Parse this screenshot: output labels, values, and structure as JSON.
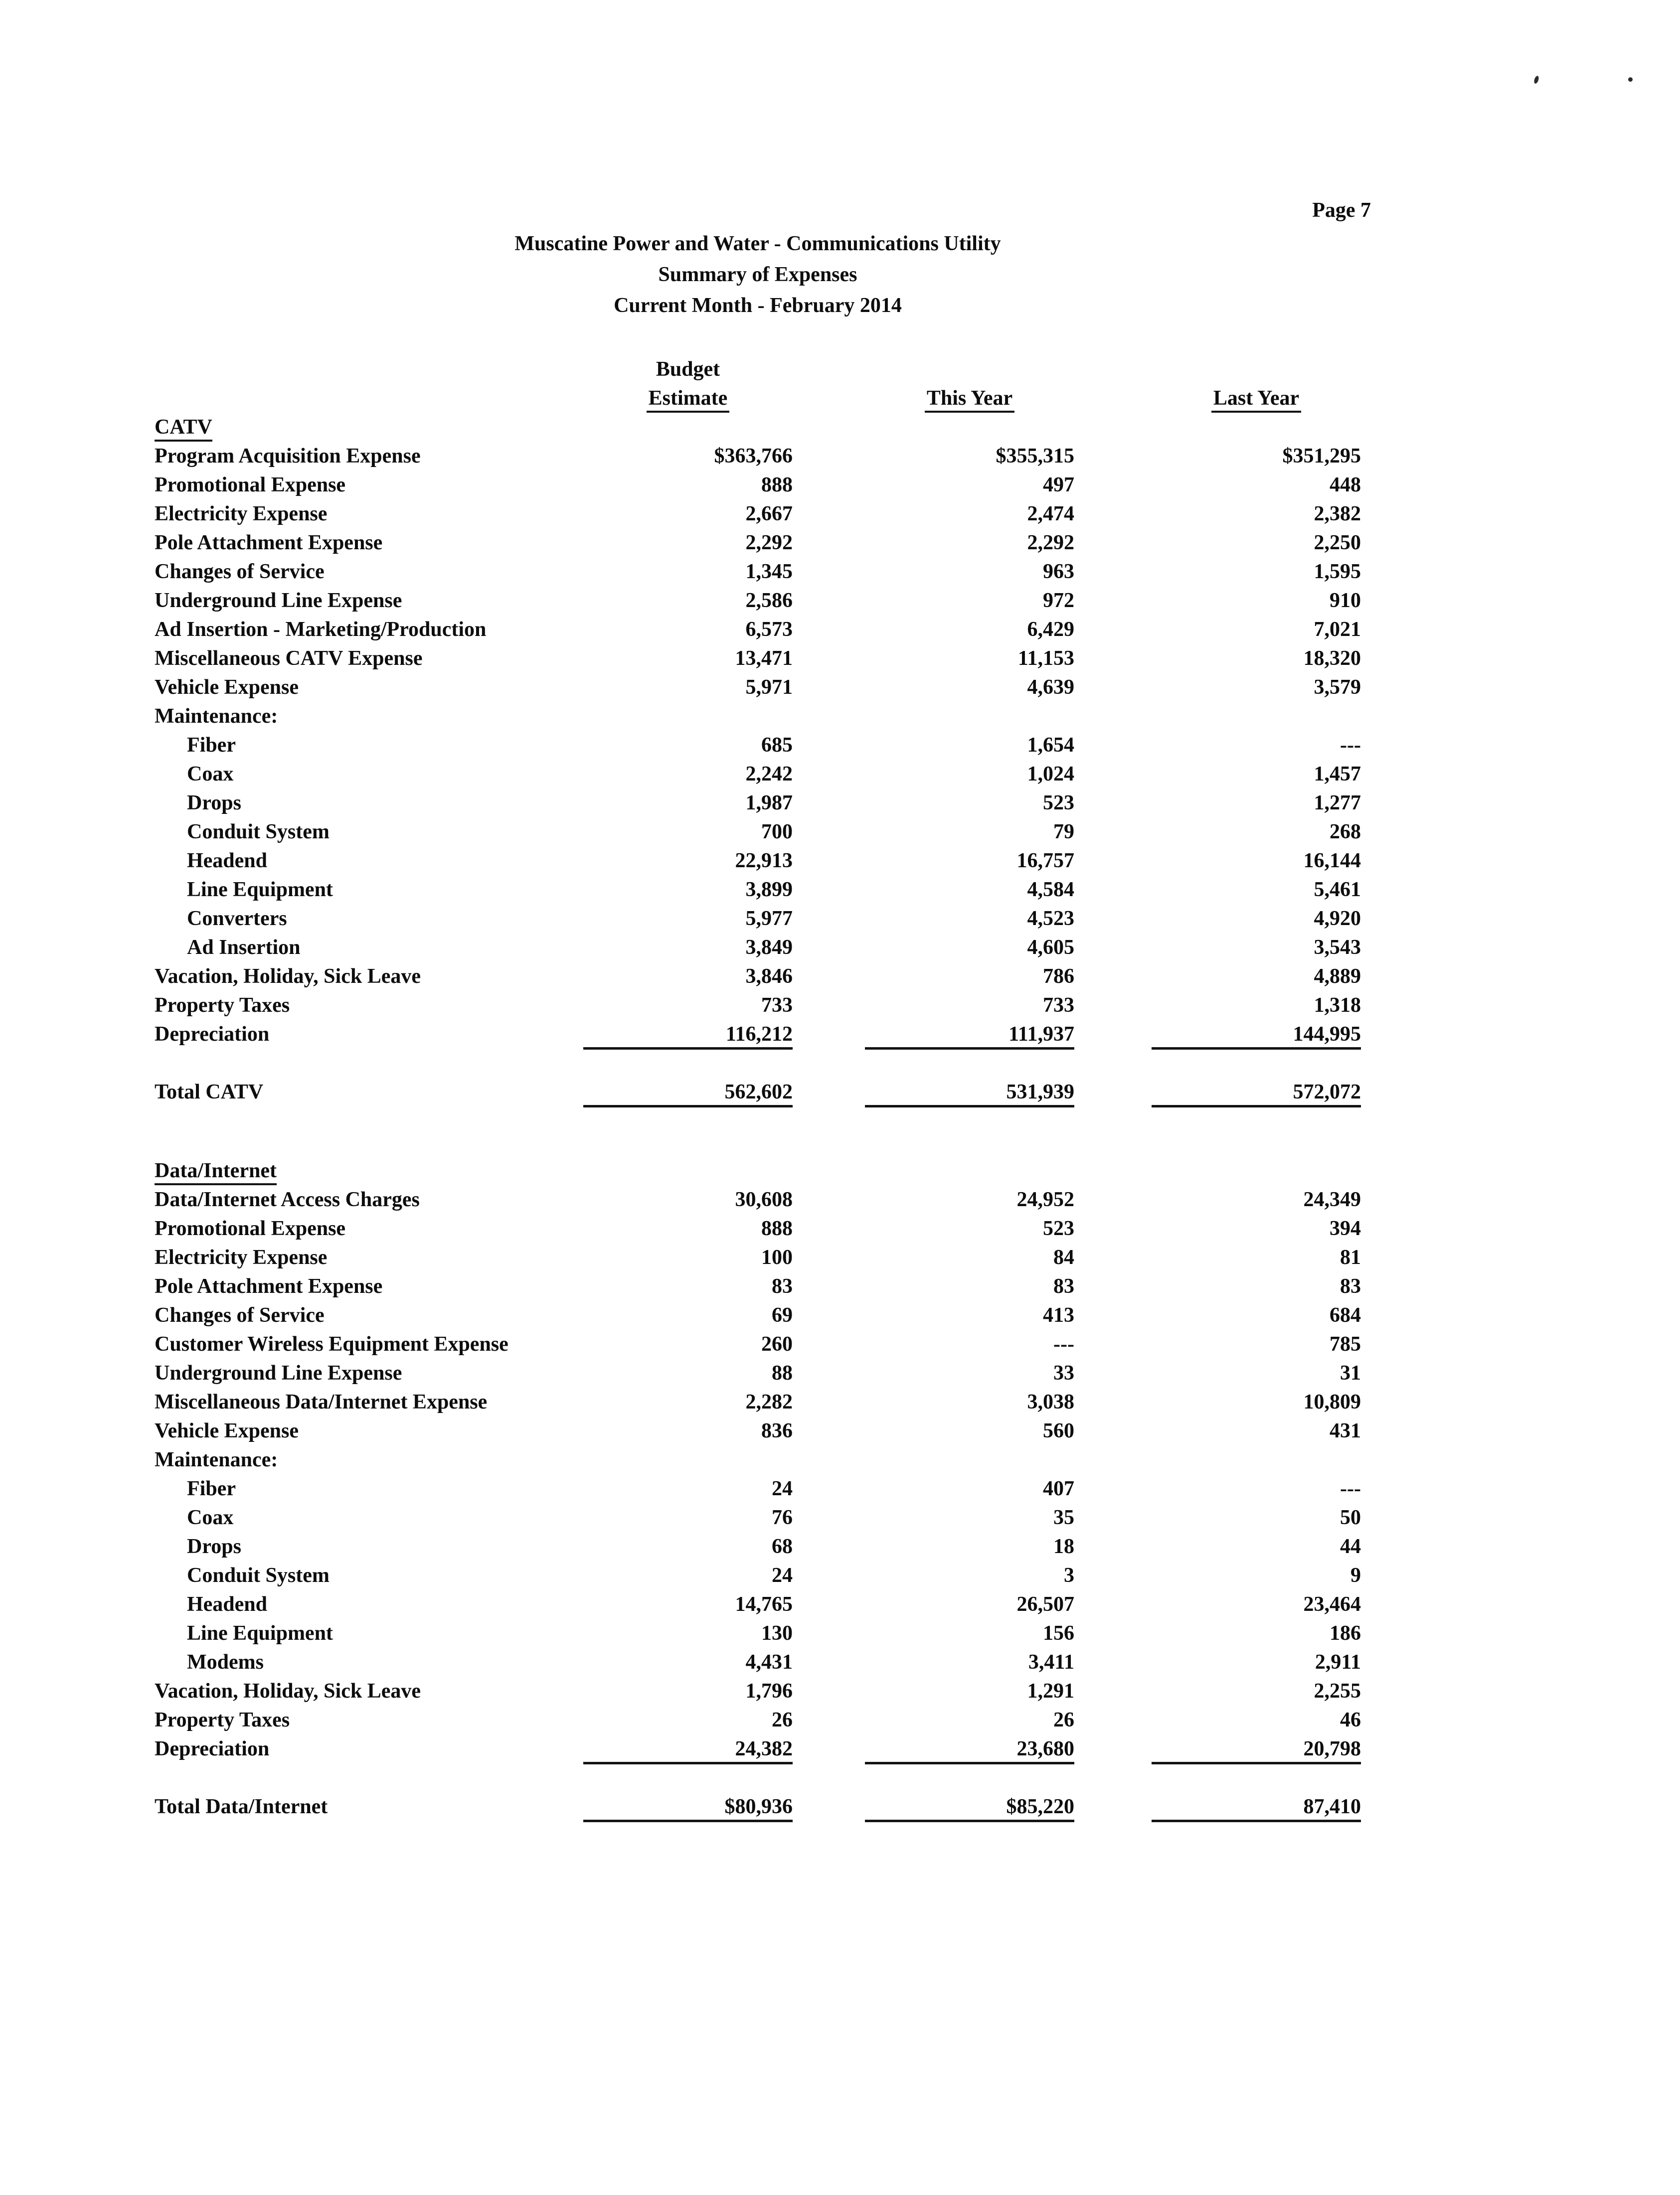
{
  "page": {
    "page_number": "Page 7"
  },
  "header": {
    "title1": "Muscatine Power and Water - Communications Utility",
    "title2": "Summary of Expenses",
    "title3": "Current Month - February 2014"
  },
  "columns": {
    "budget": "Budget",
    "estimate": "Estimate",
    "this_year": "This Year",
    "last_year": "Last Year"
  },
  "sections": [
    {
      "name": "CATV",
      "rows": [
        {
          "label": "Program Acquisition Expense",
          "indent": 0,
          "values": [
            "$363,766",
            "$355,315",
            "$351,295"
          ],
          "rule": false
        },
        {
          "label": "Promotional Expense",
          "indent": 0,
          "values": [
            "888",
            "497",
            "448"
          ],
          "rule": false
        },
        {
          "label": "Electricity Expense",
          "indent": 0,
          "values": [
            "2,667",
            "2,474",
            "2,382"
          ],
          "rule": false
        },
        {
          "label": "Pole Attachment Expense",
          "indent": 0,
          "values": [
            "2,292",
            "2,292",
            "2,250"
          ],
          "rule": false
        },
        {
          "label": "Changes of Service",
          "indent": 0,
          "values": [
            "1,345",
            "963",
            "1,595"
          ],
          "rule": false
        },
        {
          "label": "Underground Line Expense",
          "indent": 0,
          "values": [
            "2,586",
            "972",
            "910"
          ],
          "rule": false
        },
        {
          "label": "Ad Insertion - Marketing/Production",
          "indent": 0,
          "values": [
            "6,573",
            "6,429",
            "7,021"
          ],
          "rule": false
        },
        {
          "label": "Miscellaneous CATV Expense",
          "indent": 0,
          "values": [
            "13,471",
            "11,153",
            "18,320"
          ],
          "rule": false
        },
        {
          "label": "Vehicle Expense",
          "indent": 0,
          "values": [
            "5,971",
            "4,639",
            "3,579"
          ],
          "rule": false
        },
        {
          "label": "Maintenance:",
          "indent": 0,
          "values": [
            "",
            "",
            ""
          ],
          "rule": false
        },
        {
          "label": "Fiber",
          "indent": 1,
          "values": [
            "685",
            "1,654",
            "---"
          ],
          "rule": false
        },
        {
          "label": "Coax",
          "indent": 1,
          "values": [
            "2,242",
            "1,024",
            "1,457"
          ],
          "rule": false
        },
        {
          "label": "Drops",
          "indent": 1,
          "values": [
            "1,987",
            "523",
            "1,277"
          ],
          "rule": false
        },
        {
          "label": "Conduit System",
          "indent": 1,
          "values": [
            "700",
            "79",
            "268"
          ],
          "rule": false
        },
        {
          "label": "Headend",
          "indent": 1,
          "values": [
            "22,913",
            "16,757",
            "16,144"
          ],
          "rule": false
        },
        {
          "label": "Line Equipment",
          "indent": 1,
          "values": [
            "3,899",
            "4,584",
            "5,461"
          ],
          "rule": false
        },
        {
          "label": "Converters",
          "indent": 1,
          "values": [
            "5,977",
            "4,523",
            "4,920"
          ],
          "rule": false
        },
        {
          "label": "Ad Insertion",
          "indent": 1,
          "values": [
            "3,849",
            "4,605",
            "3,543"
          ],
          "rule": false
        },
        {
          "label": "Vacation, Holiday, Sick Leave",
          "indent": 0,
          "values": [
            "3,846",
            "786",
            "4,889"
          ],
          "rule": false
        },
        {
          "label": "Property Taxes",
          "indent": 0,
          "values": [
            "733",
            "733",
            "1,318"
          ],
          "rule": false
        },
        {
          "label": "Depreciation",
          "indent": 0,
          "values": [
            "116,212",
            "111,937",
            "144,995"
          ],
          "rule": true
        }
      ],
      "total": {
        "label": "Total CATV",
        "values": [
          "562,602",
          "531,939",
          "572,072"
        ],
        "rule": true
      }
    },
    {
      "name": "Data/Internet",
      "rows": [
        {
          "label": "Data/Internet Access Charges",
          "indent": 0,
          "values": [
            "30,608",
            "24,952",
            "24,349"
          ],
          "rule": false
        },
        {
          "label": "Promotional Expense",
          "indent": 0,
          "values": [
            "888",
            "523",
            "394"
          ],
          "rule": false
        },
        {
          "label": "Electricity Expense",
          "indent": 0,
          "values": [
            "100",
            "84",
            "81"
          ],
          "rule": false
        },
        {
          "label": "Pole Attachment Expense",
          "indent": 0,
          "values": [
            "83",
            "83",
            "83"
          ],
          "rule": false
        },
        {
          "label": "Changes of Service",
          "indent": 0,
          "values": [
            "69",
            "413",
            "684"
          ],
          "rule": false
        },
        {
          "label": "Customer Wireless Equipment Expense",
          "indent": 0,
          "values": [
            "260",
            "---",
            "785"
          ],
          "rule": false
        },
        {
          "label": "Underground Line Expense",
          "indent": 0,
          "values": [
            "88",
            "33",
            "31"
          ],
          "rule": false
        },
        {
          "label": "Miscellaneous Data/Internet Expense",
          "indent": 0,
          "values": [
            "2,282",
            "3,038",
            "10,809"
          ],
          "rule": false
        },
        {
          "label": "Vehicle Expense",
          "indent": 0,
          "values": [
            "836",
            "560",
            "431"
          ],
          "rule": false
        },
        {
          "label": "Maintenance:",
          "indent": 0,
          "values": [
            "",
            "",
            ""
          ],
          "rule": false
        },
        {
          "label": "Fiber",
          "indent": 1,
          "values": [
            "24",
            "407",
            "---"
          ],
          "rule": false
        },
        {
          "label": "Coax",
          "indent": 1,
          "values": [
            "76",
            "35",
            "50"
          ],
          "rule": false
        },
        {
          "label": "Drops",
          "indent": 1,
          "values": [
            "68",
            "18",
            "44"
          ],
          "rule": false
        },
        {
          "label": "Conduit System",
          "indent": 1,
          "values": [
            "24",
            "3",
            "9"
          ],
          "rule": false
        },
        {
          "label": "Headend",
          "indent": 1,
          "values": [
            "14,765",
            "26,507",
            "23,464"
          ],
          "rule": false
        },
        {
          "label": "Line Equipment",
          "indent": 1,
          "values": [
            "130",
            "156",
            "186"
          ],
          "rule": false
        },
        {
          "label": "Modems",
          "indent": 1,
          "values": [
            "4,431",
            "3,411",
            "2,911"
          ],
          "rule": false
        },
        {
          "label": "Vacation, Holiday, Sick Leave",
          "indent": 0,
          "values": [
            "1,796",
            "1,291",
            "2,255"
          ],
          "rule": false
        },
        {
          "label": "Property Taxes",
          "indent": 0,
          "values": [
            "26",
            "26",
            "46"
          ],
          "rule": false
        },
        {
          "label": "Depreciation",
          "indent": 0,
          "values": [
            "24,382",
            "23,680",
            "20,798"
          ],
          "rule": true
        }
      ],
      "total": {
        "label": "Total Data/Internet",
        "values": [
          "$80,936",
          "$85,220",
          "87,410"
        ],
        "rule": true
      }
    }
  ]
}
